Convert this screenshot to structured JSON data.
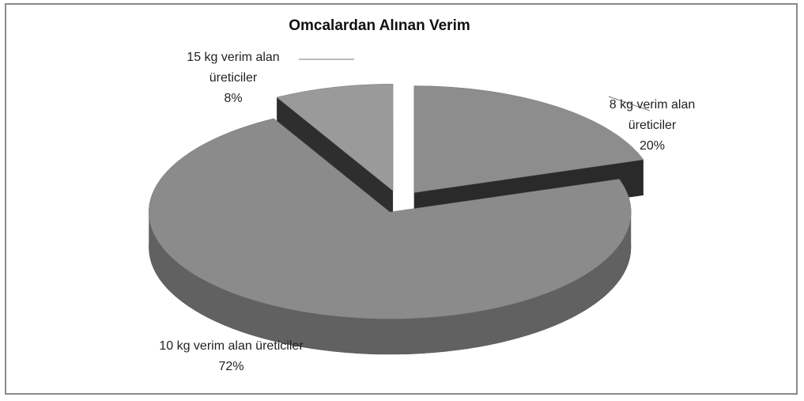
{
  "chart_data": {
    "type": "pie3d",
    "title": "Omcalardan Alınan Verim",
    "categories": [
      "8 kg verim alan üreticiler",
      "10 kg  verim alan üreticiler",
      "15 kg  verim alan üreticiler"
    ],
    "values": [
      20,
      72,
      8
    ],
    "value_labels": [
      "20%",
      "72%",
      "8%"
    ],
    "colors": [
      "#8d8d8d",
      "#8b8b8b",
      "#9a9a9a"
    ]
  }
}
